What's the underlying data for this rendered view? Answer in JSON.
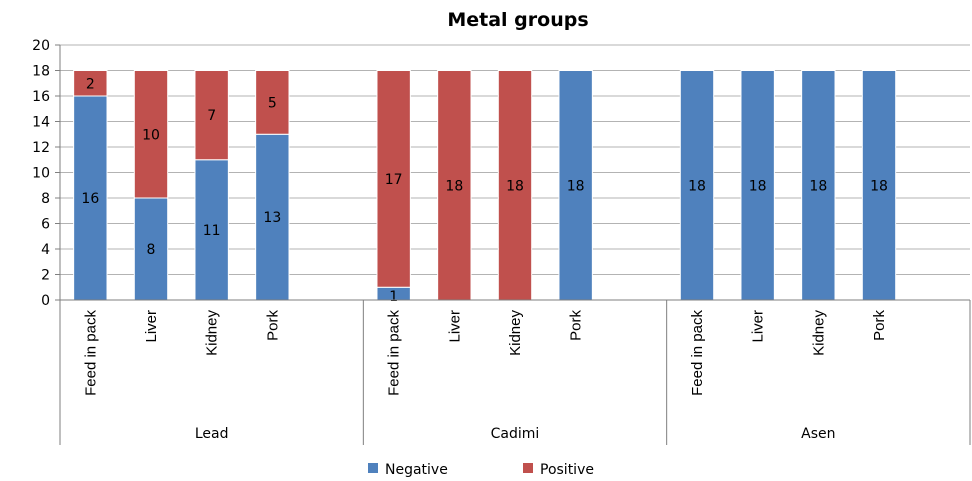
{
  "chart_data": {
    "type": "bar",
    "stacked": true,
    "title": "Metal groups",
    "ylim": [
      0,
      20
    ],
    "yticks": [
      0,
      2,
      4,
      6,
      8,
      10,
      12,
      14,
      16,
      18,
      20
    ],
    "grid": true,
    "legend_position": "bottom",
    "groups": [
      "Lead",
      "Cadimi",
      "Asen"
    ],
    "categories": [
      "Feed in pack",
      "Liver",
      "Kidney",
      "Pork"
    ],
    "series": [
      {
        "name": "Negative",
        "color": "#4F81BD",
        "values": [
          [
            16,
            8,
            11,
            13
          ],
          [
            1,
            0,
            0,
            18
          ],
          [
            18,
            18,
            18,
            18
          ]
        ],
        "labels": [
          [
            "16",
            "8",
            "11",
            "13"
          ],
          [
            "1",
            "",
            "",
            "18"
          ],
          [
            "18",
            "18",
            "18",
            "18"
          ]
        ]
      },
      {
        "name": "Positive",
        "color": "#C0504D",
        "values": [
          [
            2,
            10,
            7,
            5
          ],
          [
            17,
            18,
            18,
            0
          ],
          [
            0,
            0,
            0,
            0
          ]
        ],
        "labels": [
          [
            "2",
            "10",
            "7",
            "5"
          ],
          [
            "17",
            "18",
            "18",
            ""
          ],
          [
            "",
            "",
            "",
            ""
          ]
        ]
      }
    ]
  }
}
